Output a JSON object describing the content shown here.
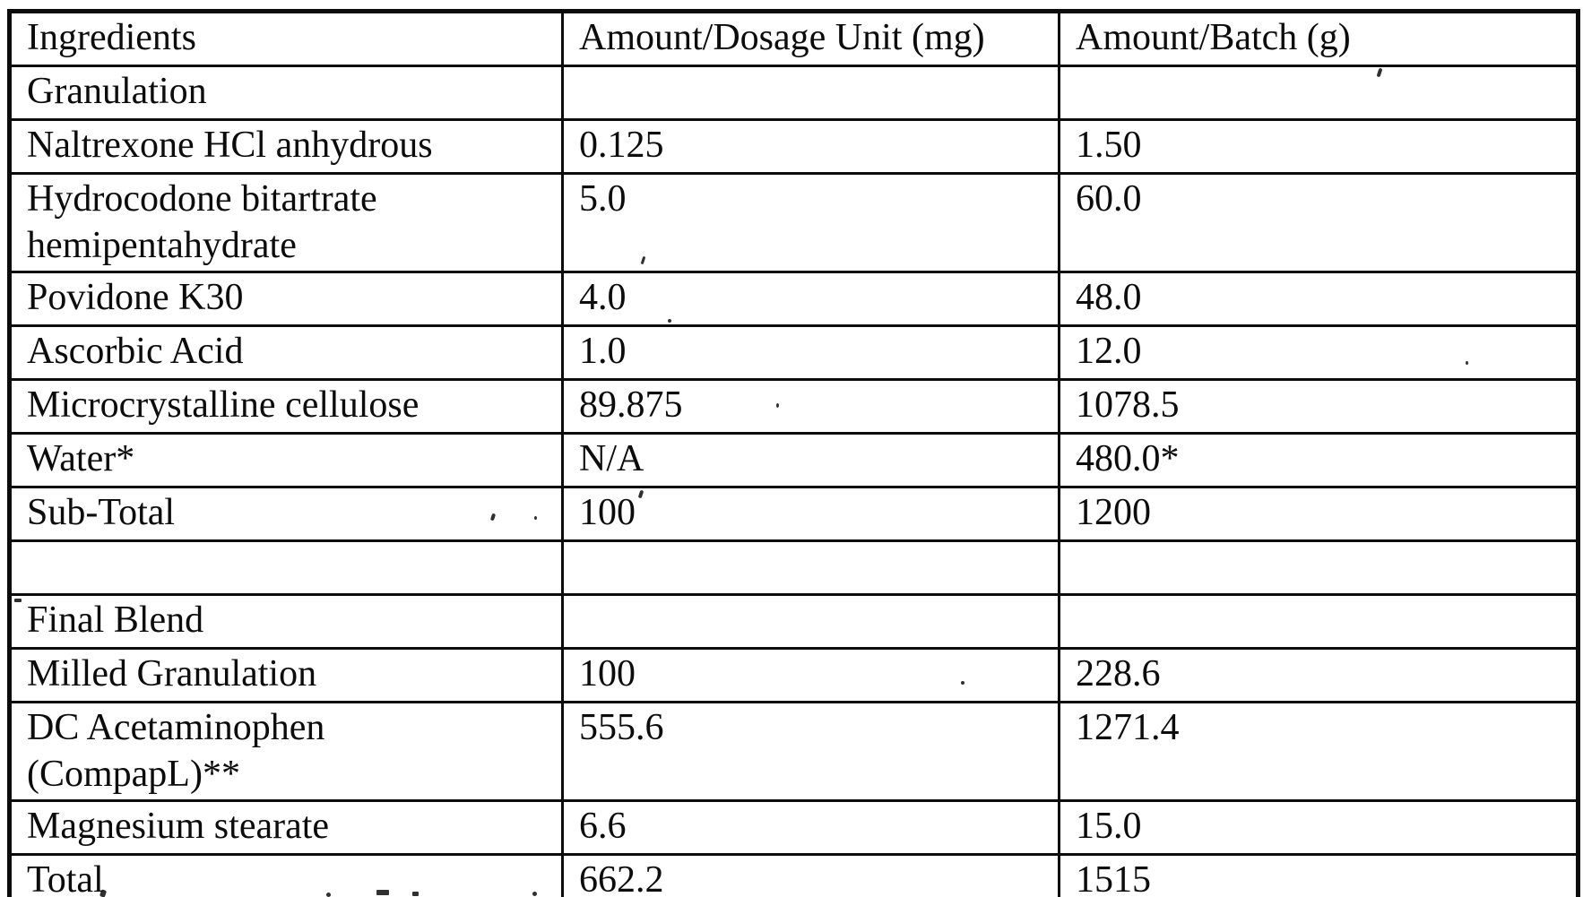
{
  "colors": {
    "ink": "#0c0c0c",
    "paper": "#ffffff"
  },
  "table": {
    "headers": [
      "Ingredients",
      "Amount/Dosage Unit (mg)",
      "Amount/Batch (g)"
    ],
    "rows": [
      [
        "Granulation",
        "",
        ""
      ],
      [
        "Naltrexone HCl anhydrous",
        "0.125",
        "1.50"
      ],
      [
        "Hydrocodone bitartrate\nhemipentahydrate",
        "5.0",
        "60.0"
      ],
      [
        "Povidone K30",
        "4.0",
        "48.0"
      ],
      [
        "Ascorbic Acid",
        "1.0",
        "12.0"
      ],
      [
        "Microcrystalline cellulose",
        "89.875",
        "1078.5"
      ],
      [
        "Water*",
        "N/A",
        "480.0*"
      ],
      [
        "Sub-Total",
        "100",
        "1200"
      ],
      [
        "",
        "",
        ""
      ],
      [
        "Final Blend",
        "",
        ""
      ],
      [
        "Milled Granulation",
        "100",
        "228.6"
      ],
      [
        "DC Acetaminophen\n(CompapL)**",
        "555.6",
        "1271.4"
      ],
      [
        "Magnesium stearate",
        "6.6",
        "15.0"
      ],
      [
        "Total",
        "662.2",
        "1515"
      ]
    ]
  }
}
